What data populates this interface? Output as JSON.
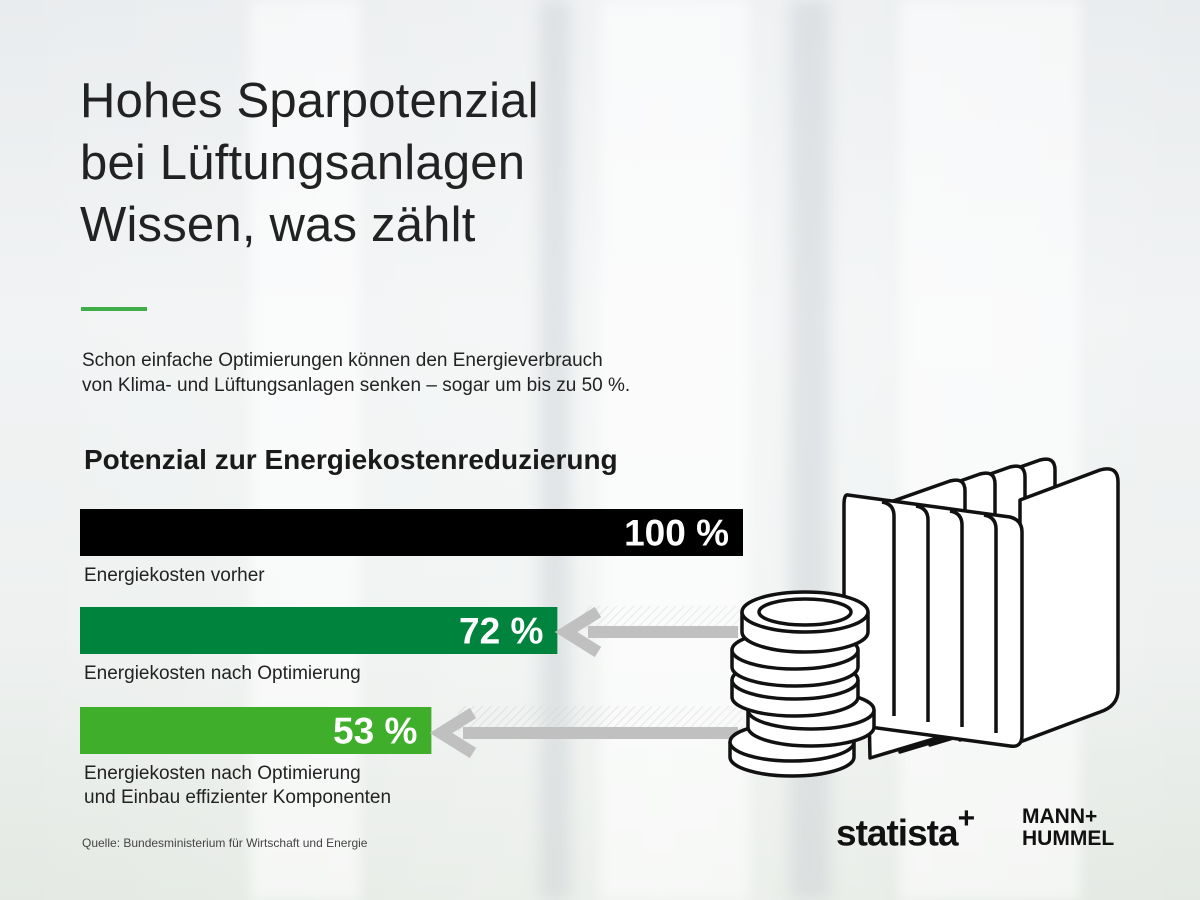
{
  "title_lines": [
    "Hohes Sparpotenzial",
    "bei Lüftungsanlagen",
    "Wissen, was zählt"
  ],
  "intro_lines": [
    "Schon einfache Optimierungen können den Energieverbrauch",
    "von Klima- und Lüftungsanlagen senken – sogar um bis zu 50 %."
  ],
  "chart_data": {
    "type": "bar",
    "orientation": "horizontal",
    "title": "Potenzial zur Energiekostenreduzierung",
    "unit": "%",
    "xlim": [
      0,
      100
    ],
    "grid": false,
    "categories": [
      "Energiekosten vorher",
      "Energiekosten nach Optimierung",
      "Energiekosten nach Optimierung und Einbau effizienter Komponenten"
    ],
    "category_lines": [
      [
        "Energiekosten vorher"
      ],
      [
        "Energiekosten nach Optimierung"
      ],
      [
        "Energiekosten nach Optimierung",
        "und Einbau effizienter Komponenten"
      ]
    ],
    "values": [
      100,
      72,
      53
    ],
    "value_labels": [
      "100 %",
      "72 %",
      "53 %"
    ],
    "colors": [
      "#000000",
      "#00843d",
      "#3fae2a"
    ]
  },
  "source": "Quelle: Bundesministerium für Wirtschaft und Energie",
  "logos": {
    "statista": "statista",
    "statista_plus": "+",
    "mann_hummel_lines": [
      "MANN+",
      "HUMMEL"
    ]
  },
  "colors": {
    "accent": "#3fae49",
    "text": "#1f1f1f"
  },
  "icons": [
    "arrow-left-icon",
    "coin-stack-icon",
    "air-filter-icon"
  ]
}
